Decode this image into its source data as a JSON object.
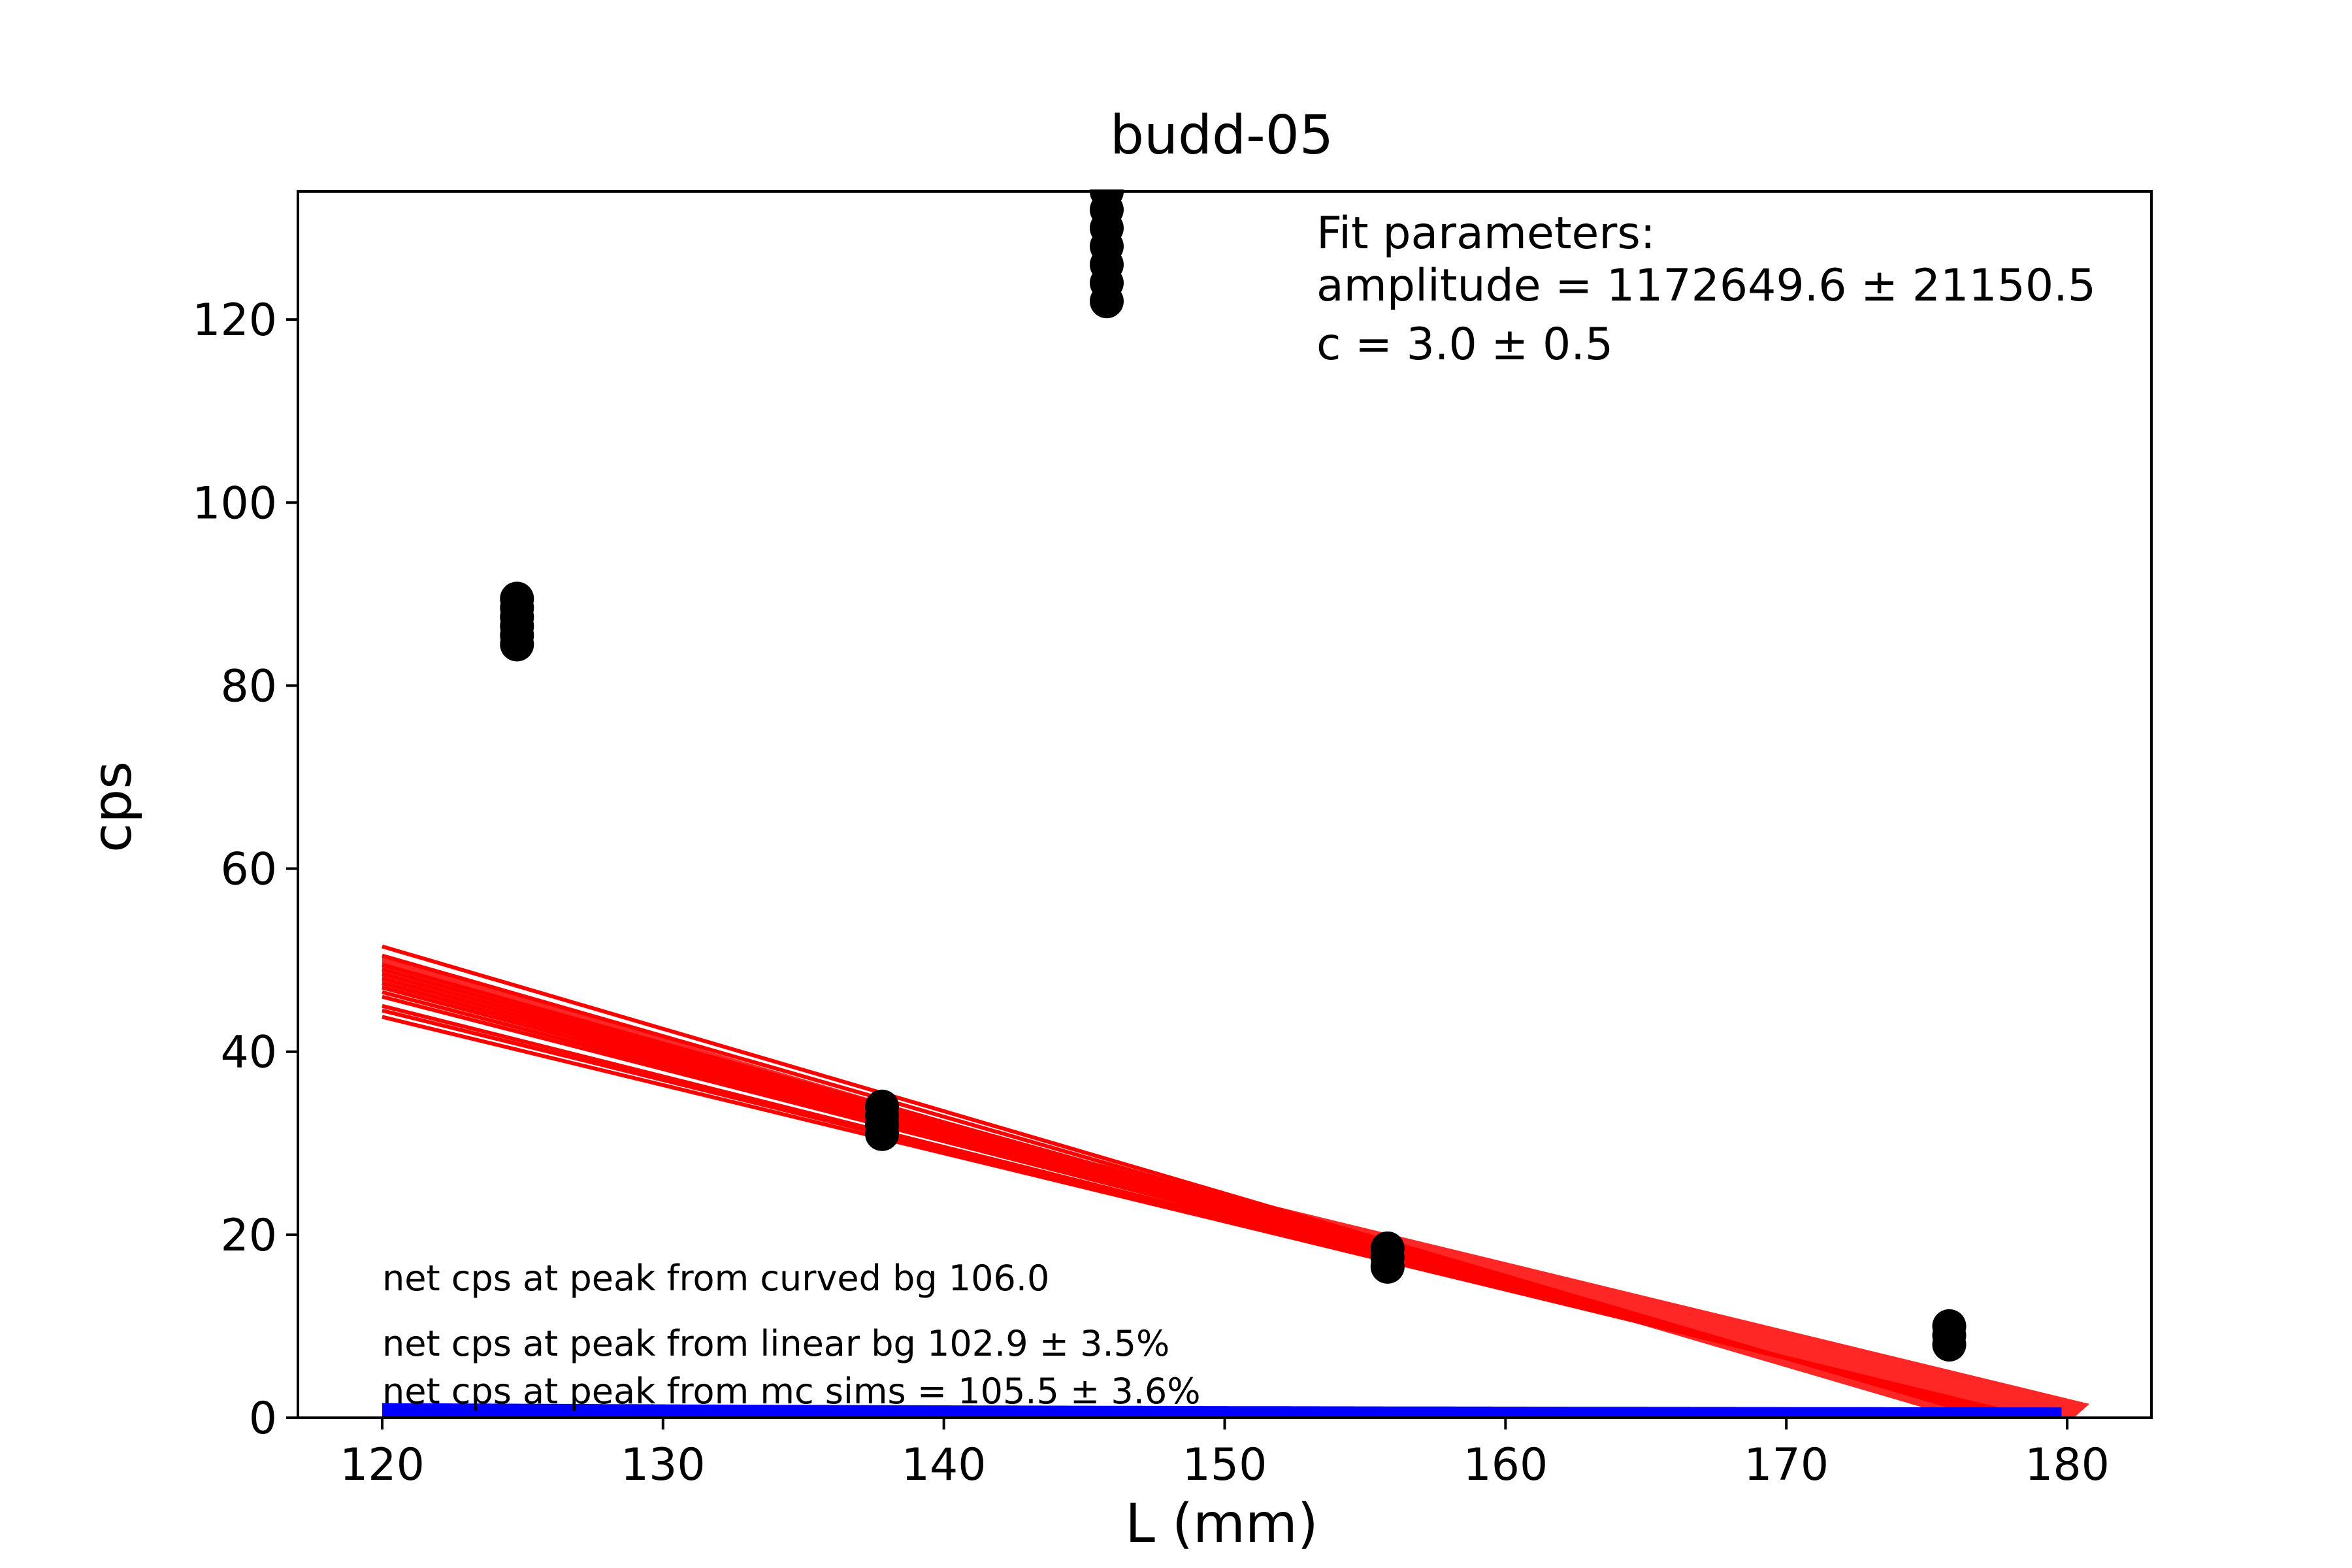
{
  "chart_data": {
    "type": "scatter",
    "title": "budd-05",
    "xlabel": "L (mm)",
    "ylabel": "cps",
    "xlim": [
      117,
      183
    ],
    "ylim": [
      0,
      134
    ],
    "xticks": [
      120,
      130,
      140,
      150,
      160,
      170,
      180
    ],
    "yticks": [
      0,
      20,
      40,
      60,
      80,
      100,
      120
    ],
    "grid": false,
    "points": {
      "color": "#000000",
      "series": [
        {
          "x": 124.8,
          "y": [
            84.5,
            85.5,
            86.5,
            87.5,
            88.5,
            89.5
          ]
        },
        {
          "x": 137.8,
          "y": [
            31.0,
            32.0,
            33.0,
            34.0
          ]
        },
        {
          "x": 145.8,
          "y": [
            122,
            124,
            126,
            128,
            130,
            132,
            134
          ]
        },
        {
          "x": 155.8,
          "y": [
            16.5,
            17.5,
            18.5
          ]
        },
        {
          "x": 175.8,
          "y": [
            8.0,
            9.0,
            10.0
          ]
        }
      ]
    },
    "curved_fit": {
      "color": "#0000ff",
      "amplitude": 1172649.6,
      "c": 3.0,
      "x_range": [
        120,
        179.8
      ],
      "offset": 0
    },
    "linear_fits": {
      "color": "#ff0000",
      "x_start": 120,
      "lines": [
        {
          "y0": 51.5,
          "slope": -0.9
        },
        {
          "y0": 50.5,
          "slope": -0.88
        },
        {
          "y0": 49.5,
          "slope": -0.86
        },
        {
          "y0": 48.5,
          "slope": -0.84
        },
        {
          "y0": 47.5,
          "slope": -0.82
        },
        {
          "y0": 46.5,
          "slope": -0.8
        },
        {
          "y0": 46.0,
          "slope": -0.79
        },
        {
          "y0": 45.0,
          "slope": -0.77
        },
        {
          "y0": 44.5,
          "slope": -0.76
        },
        {
          "y0": 43.8,
          "slope": -0.745
        },
        {
          "y0": 49.0,
          "slope": -0.85
        },
        {
          "y0": 48.0,
          "slope": -0.83
        },
        {
          "y0": 47.0,
          "slope": -0.81
        }
      ]
    },
    "fit_parameters": {
      "heading": "Fit parameters:",
      "amplitude": "amplitude = 1172649.6 ± 21150.5",
      "c": "c = 3.0 ± 0.5"
    },
    "notes": [
      "net cps at peak from curved bg 106.0",
      "net cps at peak from linear bg 102.9 ± 3.5%",
      "net cps at peak from mc sims = 105.5 ± 3.6%"
    ]
  }
}
